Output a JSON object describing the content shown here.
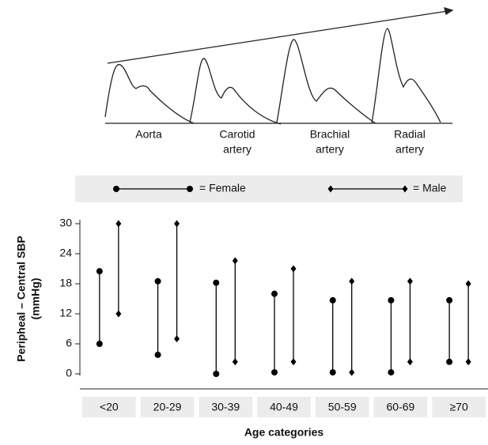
{
  "diagram": {
    "labels": [
      [
        "Aorta"
      ],
      [
        "Carotid",
        "artery"
      ],
      [
        "Brachial",
        "artery"
      ],
      [
        "Radial",
        "artery"
      ]
    ]
  },
  "chart_data": {
    "type": "range",
    "categories": [
      "<20",
      "20-29",
      "30-39",
      "40-49",
      "50-59",
      "60-69",
      "≥70"
    ],
    "series": [
      {
        "name": "= Female",
        "color": "#000000",
        "marker": "circle",
        "low": [
          6,
          3.8,
          0,
          0.3,
          0.3,
          0.3,
          2.4
        ],
        "high": [
          20.5,
          18.5,
          18.2,
          16,
          14.7,
          14.7,
          14.7
        ]
      },
      {
        "name": "= Male",
        "color": "#000000",
        "marker": "diamond",
        "low": [
          12,
          7,
          2.4,
          2.4,
          0.3,
          2.4,
          2.4
        ],
        "high": [
          30,
          30,
          22.6,
          21,
          18.5,
          18.5,
          18
        ]
      }
    ],
    "ylabel": [
      "Peripheal – Central SBP",
      "(mmHg)"
    ],
    "xlabel": "Age categories",
    "ylim": [
      0,
      30
    ],
    "yticks": [
      0,
      6,
      12,
      18,
      24,
      30
    ]
  }
}
